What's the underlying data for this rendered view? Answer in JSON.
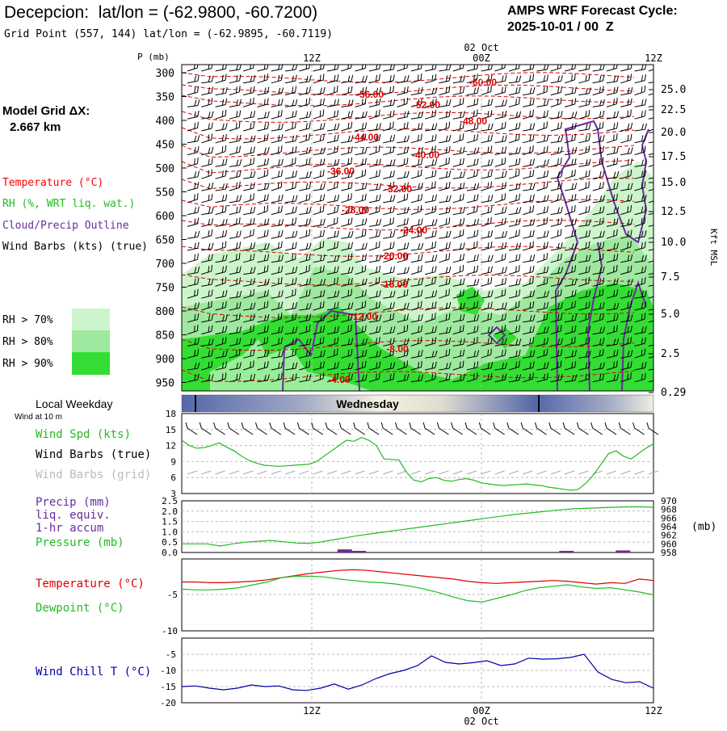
{
  "header": {
    "station_title": "Decepcion:  lat/lon = (-62.9800, -60.7200)",
    "grid_point": "Grid Point (557, 144) lat/lon = (-62.9895, -60.7119)",
    "forecast_line1": "AMPS WRF Forecast Cycle:",
    "forecast_line2": "2025-10-01 / 00  Z"
  },
  "left_panel": {
    "grid_dx_label": "Model Grid ΔX:",
    "grid_dx_value": "2.667 km",
    "legend_temperature": "Temperature (°C)",
    "legend_rh": "RH (%, WRT liq. wat.)",
    "legend_cloud": "Cloud/Precip Outline",
    "legend_wind": "Wind Barbs (kts) (true)",
    "rh70": "RH > 70%",
    "rh80": "RH > 80%",
    "rh90": "RH > 90%",
    "local_weekday": "Local Weekday",
    "wind_at": "Wind at 10 m",
    "wind_spd": "Wind Spd (kts)",
    "wind_barbs_true": "Wind Barbs (true)",
    "wind_barbs_grid": "Wind Barbs (grid)",
    "precip1": "Precip (mm)",
    "precip2": "liq. equiv.",
    "precip3": "1-hr accum",
    "pressure": "Pressure (mb)",
    "temperature": "Temperature (°C)",
    "dewpoint": "Dewpoint (°C)",
    "windchill": "Wind Chill T (°C)"
  },
  "colors": {
    "temperature": "#ff0000",
    "rh": "#22bb22",
    "cloud": "#6a2c9a",
    "windchill": "#0000aa",
    "rh70": "#ccf5cc",
    "rh80": "#9fe89f",
    "rh90": "#33dd33"
  },
  "time_axis": {
    "top_labels": [
      "12Z",
      "00Z",
      "12Z"
    ],
    "date_label": "02 Oct",
    "weekday": "Wednesday"
  },
  "chart_data": [
    {
      "type": "heatmap",
      "p_axis_label": "P (mb)",
      "p_ticks": [
        "300",
        "350",
        "400",
        "450",
        "500",
        "550",
        "600",
        "650",
        "700",
        "750",
        "800",
        "850",
        "900",
        "950"
      ],
      "height_axis_label": "Kft MSL",
      "height_ticks": [
        "25.0",
        "22.5",
        "20.0",
        "17.5",
        "15.0",
        "12.5",
        "10.0",
        "7.5",
        "5.0",
        "2.5",
        "0.29"
      ],
      "temperature_isotherms": [
        "-60.00",
        "-56.00",
        "-52.00",
        "-48.00",
        "-44.00",
        "-40.00",
        "-36.00",
        "-32.00",
        "-28.00",
        "-24.00",
        "-20.00",
        "-16.00",
        "-12.00",
        "-8.00",
        "-4.00"
      ]
    },
    {
      "type": "line",
      "name": "Wind Spd (kts)",
      "yticks": [
        "18",
        "15",
        "12",
        "9",
        "6",
        "3"
      ],
      "ylim": [
        3,
        18
      ],
      "values": [
        13,
        12,
        11.5,
        11.6,
        12,
        12.5,
        11.7,
        11,
        10,
        9.2,
        8.7,
        8.3,
        8.2,
        8.1,
        8.2,
        8.3,
        8.4,
        8.5,
        9,
        10,
        11,
        12,
        13,
        12.8,
        13.5,
        13,
        12,
        9.5,
        9.4,
        9.3,
        7,
        5.5,
        5.2,
        5.8,
        6,
        5.5,
        5.3,
        5.6,
        5.8,
        5.5,
        5,
        4.8,
        4.6,
        4.5,
        4.6,
        4.7,
        4.8,
        4.6,
        4.5,
        4.2,
        4,
        3.8,
        3.6,
        3.8,
        5,
        6.5,
        8.5,
        10.5,
        11,
        10,
        9.5,
        10.5,
        11.5,
        12.3
      ]
    },
    {
      "type": "line",
      "name": "Pressure (mb)",
      "yticks_left": [
        "2.5",
        "2.0",
        "1.5",
        "1.0",
        "0.5",
        "0.0"
      ],
      "yticks_right": [
        "970",
        "968",
        "966",
        "964",
        "962",
        "960",
        "958"
      ],
      "unit_label": "(mb)",
      "ylim_pressure": [
        958,
        970
      ],
      "pressure_values": [
        960,
        960,
        960,
        959.5,
        960,
        960.4,
        960.6,
        960.8,
        960.5,
        960.2,
        960.1,
        960.5,
        961,
        961.5,
        962,
        962.4,
        962.8,
        963.2,
        963.6,
        964,
        964.4,
        964.8,
        965.2,
        965.6,
        966,
        966.4,
        966.8,
        967.1,
        967.4,
        967.7,
        968,
        968.2,
        968.3,
        968.4,
        968.5,
        968.6,
        968.6,
        968.5
      ],
      "precip_bars": [
        {
          "x": 0.33,
          "value": 0.15
        },
        {
          "x": 0.36,
          "value": 0.05
        },
        {
          "x": 0.8,
          "value": 0.03
        },
        {
          "x": 0.92,
          "value": 0.1
        }
      ]
    },
    {
      "type": "line",
      "name": "Temperature / Dewpoint (°C)",
      "yticks": [
        "-5",
        "-10"
      ],
      "ylim": [
        -10,
        0
      ],
      "temperature": [
        -3.2,
        -3.2,
        -3.3,
        -3.3,
        -3.2,
        -3.1,
        -2.9,
        -2.6,
        -2.3,
        -2,
        -1.8,
        -1.6,
        -1.5,
        -1.6,
        -1.8,
        -2,
        -2.2,
        -2.4,
        -2.6,
        -2.8,
        -3.1,
        -3.3,
        -3.4,
        -3.3,
        -3.2,
        -3.1,
        -3,
        -3.1,
        -3.3,
        -3.5,
        -3.3,
        -3.4,
        -2.8,
        -3.0
      ],
      "dewpoint": [
        -4.2,
        -4.3,
        -4.3,
        -4.2,
        -4,
        -3.6,
        -3.2,
        -2.6,
        -2.4,
        -2.4,
        -2.5,
        -2.8,
        -3.0,
        -3.2,
        -3.3,
        -3.5,
        -3.8,
        -4.2,
        -4.7,
        -5.3,
        -5.8,
        -6.0,
        -5.5,
        -5.0,
        -4.4,
        -4.0,
        -3.8,
        -3.6,
        -3.9,
        -4.1,
        -4.0,
        -4.3,
        -4.6,
        -5.0
      ]
    },
    {
      "type": "line",
      "name": "Wind Chill T (°C)",
      "yticks": [
        "-5",
        "-10",
        "-15",
        "-20"
      ],
      "ylim": [
        -20,
        0
      ],
      "values": [
        -15,
        -14.8,
        -15.5,
        -16,
        -15.5,
        -14.5,
        -15,
        -14.8,
        -16,
        -16.2,
        -15.5,
        -14.2,
        -15.8,
        -14.5,
        -12.5,
        -11,
        -10,
        -8.5,
        -5.5,
        -7.5,
        -8,
        -7.6,
        -7,
        -8.5,
        -8,
        -6.2,
        -6.5,
        -6.4,
        -6,
        -5,
        -10.5,
        -12.8,
        -13.8,
        -13.5,
        -15.5
      ]
    }
  ]
}
